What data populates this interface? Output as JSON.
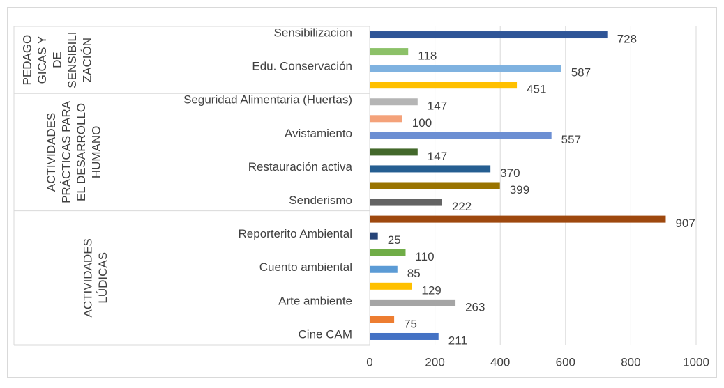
{
  "chart_data": {
    "type": "bar",
    "orientation": "horizontal",
    "categories": [
      "Sensibilizacion",
      null,
      "Edu. Conservación",
      null,
      "Seguridad Alimentaria (Huertas)",
      null,
      "Avistamiento",
      null,
      "Restauración activa",
      null,
      "Senderismo",
      null,
      "Reporterito Ambiental",
      null,
      "Cuento ambiental",
      null,
      "Arte ambiente",
      null,
      "Cine CAM"
    ],
    "values": [
      728,
      118,
      587,
      451,
      147,
      100,
      557,
      147,
      370,
      399,
      222,
      907,
      25,
      110,
      85,
      129,
      263,
      75,
      211
    ],
    "colors": [
      "#2f5597",
      "#8cc168",
      "#7fb2e0",
      "#ffc000",
      "#b5b5b5",
      "#f4a27a",
      "#6c8fd3",
      "#43682b",
      "#255e91",
      "#997300",
      "#636363",
      "#9e480e",
      "#264478",
      "#70ad47",
      "#5b9bd5",
      "#ffc000",
      "#a5a5a5",
      "#ed7d31",
      "#4472c4"
    ],
    "groups": [
      {
        "lines": [
          "PEDAGO",
          "GICAS Y",
          "DE",
          "SENSIBILI",
          "ZACIÓN"
        ],
        "start": 0,
        "end": 3
      },
      {
        "lines": [
          "ACTIVIDADES",
          "PRÁCTICAS PARA",
          "EL DESARROLLO",
          "HUMANO"
        ],
        "start": 4,
        "end": 10
      },
      {
        "lines": [
          "ACTIVIDADES",
          "LÚDICAS"
        ],
        "start": 11,
        "end": 18
      }
    ],
    "xlim": [
      0,
      1000
    ],
    "xticks": [
      0,
      200,
      400,
      600,
      800,
      1000
    ],
    "grid": true
  }
}
